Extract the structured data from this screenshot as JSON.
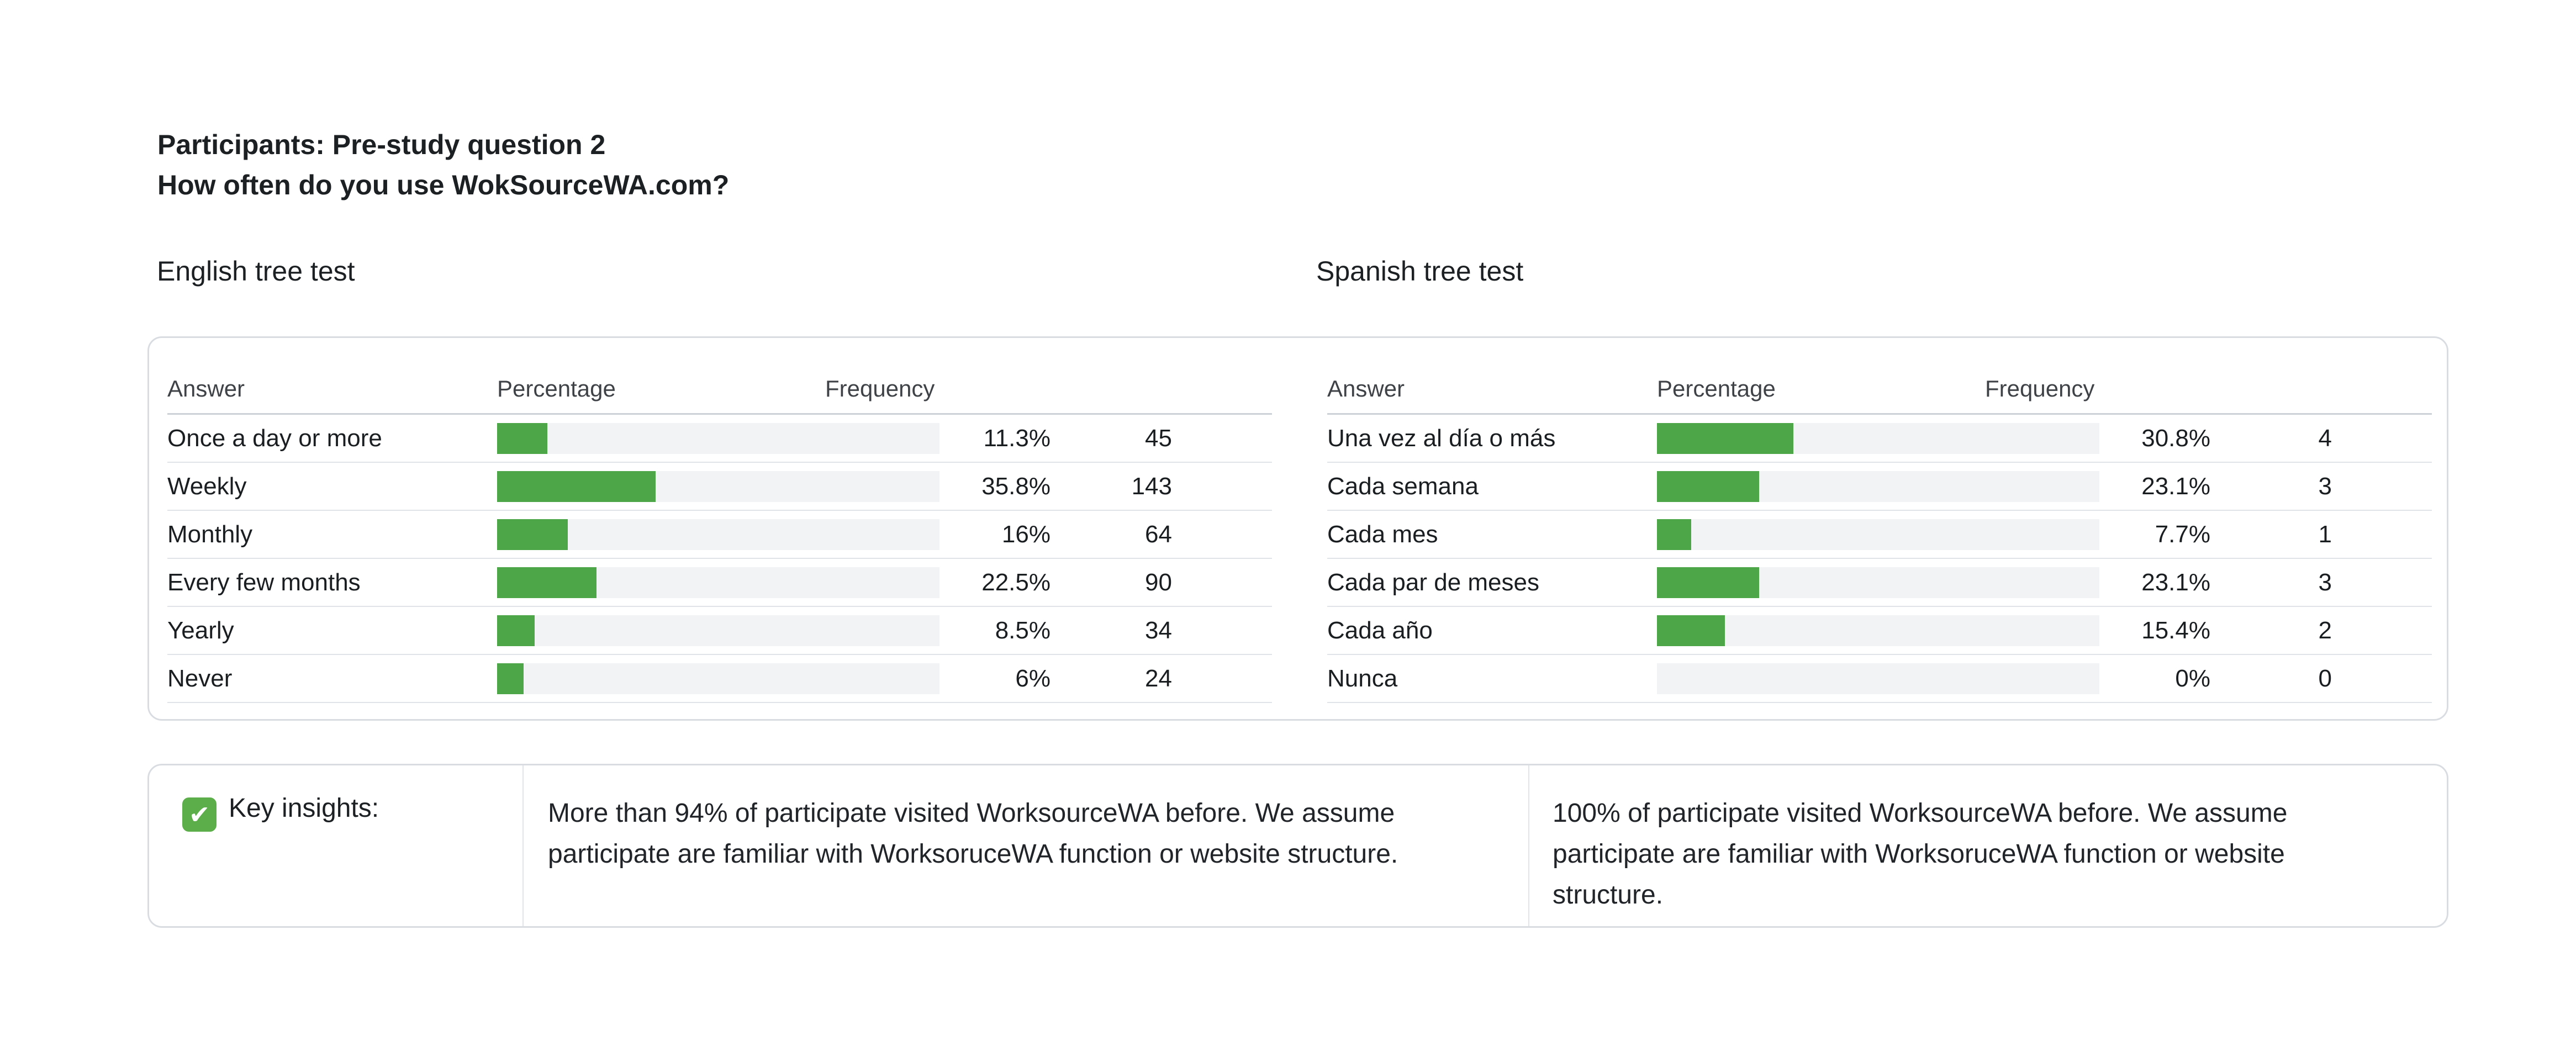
{
  "header": {
    "title_line1": "Participants: Pre-study question 2",
    "title_line2": "How often do you use WokSourceWA.com?"
  },
  "colors": {
    "bar_fill_green": "#4da647",
    "bar_track_gray": "#f2f3f4",
    "check_icon_green": "#5cae4a",
    "card_border": "#d9dde2",
    "row_divider": "#e0e3e7",
    "header_divider": "#ccd1d7"
  },
  "tables": [
    {
      "id": "english",
      "section_title": "English tree test",
      "columns": [
        "Answer",
        "Percentage",
        "Frequency"
      ],
      "rows": [
        {
          "answer": "Once a day or more",
          "percentage": 11.3,
          "percentage_label": "11.3%",
          "frequency": "45"
        },
        {
          "answer": "Weekly",
          "percentage": 35.8,
          "percentage_label": "35.8%",
          "frequency": "143"
        },
        {
          "answer": "Monthly",
          "percentage": 16,
          "percentage_label": "16%",
          "frequency": "64"
        },
        {
          "answer": "Every few months",
          "percentage": 22.5,
          "percentage_label": "22.5%",
          "frequency": "90"
        },
        {
          "answer": "Yearly",
          "percentage": 8.5,
          "percentage_label": "8.5%",
          "frequency": "34"
        },
        {
          "answer": "Never",
          "percentage": 6,
          "percentage_label": "6%",
          "frequency": "24"
        }
      ]
    },
    {
      "id": "spanish",
      "section_title": "Spanish tree test",
      "columns": [
        "Answer",
        "Percentage",
        "Frequency"
      ],
      "rows": [
        {
          "answer": "Una vez al día o más",
          "percentage": 30.8,
          "percentage_label": "30.8%",
          "frequency": "4"
        },
        {
          "answer": "Cada semana",
          "percentage": 23.1,
          "percentage_label": "23.1%",
          "frequency": "3"
        },
        {
          "answer": "Cada mes",
          "percentage": 7.7,
          "percentage_label": "7.7%",
          "frequency": "1"
        },
        {
          "answer": "Cada par de meses",
          "percentage": 23.1,
          "percentage_label": "23.1%",
          "frequency": "3"
        },
        {
          "answer": "Cada año",
          "percentage": 15.4,
          "percentage_label": "15.4%",
          "frequency": "2"
        },
        {
          "answer": "Nunca",
          "percentage": 0,
          "percentage_label": "0%",
          "frequency": "0"
        }
      ]
    }
  ],
  "insights": {
    "icon": "white-check-mark-emoji",
    "label": "Key insights:",
    "notes": [
      "More than 94% of participate visited WorksourceWA before. We assume participate are familiar with WorksoruceWA function or website structure.",
      "100% of participate visited WorksourceWA before. We assume participate are familiar with WorksoruceWA function or website structure."
    ]
  },
  "chart_data": [
    {
      "type": "bar",
      "title": "English tree test",
      "categories": [
        "Once a day or more",
        "Weekly",
        "Monthly",
        "Every few months",
        "Yearly",
        "Never"
      ],
      "series": [
        {
          "name": "Percentage",
          "values": [
            11.3,
            35.8,
            16,
            22.5,
            8.5,
            6
          ]
        },
        {
          "name": "Frequency",
          "values": [
            45,
            143,
            64,
            90,
            34,
            24
          ]
        }
      ],
      "xlabel": "",
      "ylabel": "",
      "xlim": [
        0,
        100
      ],
      "orientation": "horizontal",
      "grid": false,
      "legend": "none"
    },
    {
      "type": "bar",
      "title": "Spanish tree test",
      "categories": [
        "Una vez al día o más",
        "Cada semana",
        "Cada mes",
        "Cada par de meses",
        "Cada año",
        "Nunca"
      ],
      "series": [
        {
          "name": "Percentage",
          "values": [
            30.8,
            23.1,
            7.7,
            23.1,
            15.4,
            0
          ]
        },
        {
          "name": "Frequency",
          "values": [
            4,
            3,
            1,
            3,
            2,
            0
          ]
        }
      ],
      "xlabel": "",
      "ylabel": "",
      "xlim": [
        0,
        100
      ],
      "orientation": "horizontal",
      "grid": false,
      "legend": "none"
    }
  ]
}
